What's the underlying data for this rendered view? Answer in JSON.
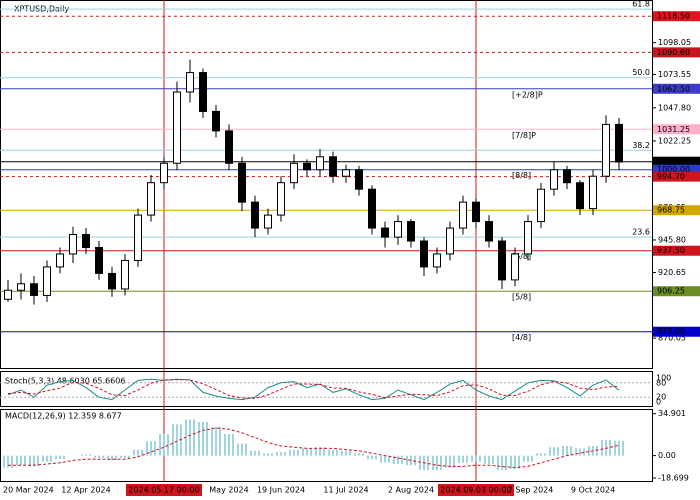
{
  "chart_data": {
    "type": "candlestick",
    "title": "XPTUSD,Daily",
    "categories": [
      "20 Mar 2024",
      null,
      null,
      null,
      null,
      null,
      "12 Apr 2024",
      null,
      null,
      null,
      null,
      null,
      "2024.05.17 00:00",
      null,
      null,
      null,
      null,
      "May 2024",
      null,
      null,
      null,
      "19 Jun 2024",
      null,
      null,
      null,
      null,
      "11 Jul 2024",
      null,
      null,
      null,
      null,
      "2 Aug 2024",
      null,
      null,
      null,
      null,
      "2024.09.03 00:00",
      null,
      null,
      null,
      "17 Sep 2024",
      null,
      null,
      null,
      null,
      "9 Oct 2024",
      null,
      null
    ],
    "vline_dates": [
      "2024.05.17 00:00",
      "2024.09.03 00:00"
    ],
    "open": [
      900,
      907,
      912,
      903,
      925,
      935,
      950,
      940,
      920,
      908,
      930,
      965,
      990,
      1005,
      1060,
      1075,
      1045,
      1030,
      1005,
      975,
      955,
      965,
      990,
      1005,
      1000,
      1010,
      995,
      1000,
      985,
      955,
      948,
      960,
      945,
      925,
      935,
      955,
      975,
      960,
      945,
      915,
      935,
      960,
      985,
      1000,
      990,
      970,
      995,
      1035
    ],
    "high": [
      915,
      920,
      918,
      930,
      940,
      956,
      955,
      945,
      925,
      935,
      970,
      996,
      1010,
      1068,
      1085,
      1078,
      1050,
      1035,
      1010,
      980,
      970,
      995,
      1012,
      1008,
      1016,
      1014,
      1004,
      1003,
      988,
      960,
      965,
      962,
      948,
      940,
      960,
      980,
      978,
      965,
      948,
      940,
      965,
      990,
      1006,
      1003,
      992,
      1000,
      1042,
      1040
    ],
    "low": [
      898,
      900,
      896,
      898,
      920,
      928,
      935,
      915,
      902,
      903,
      925,
      960,
      985,
      1000,
      1052,
      1040,
      1025,
      1000,
      968,
      948,
      950,
      960,
      985,
      995,
      995,
      990,
      990,
      980,
      950,
      940,
      942,
      940,
      918,
      920,
      930,
      950,
      955,
      940,
      908,
      910,
      930,
      955,
      980,
      985,
      965,
      965,
      990,
      1000
    ],
    "close": [
      907,
      912,
      903,
      925,
      935,
      950,
      940,
      920,
      908,
      930,
      965,
      990,
      1005,
      1060,
      1075,
      1045,
      1030,
      1005,
      975,
      955,
      965,
      990,
      1005,
      1000,
      1010,
      995,
      1000,
      985,
      955,
      948,
      960,
      945,
      925,
      935,
      955,
      975,
      960,
      945,
      915,
      935,
      960,
      985,
      1000,
      990,
      970,
      995,
      1035,
      1006
    ],
    "ylim": [
      847,
      1131
    ],
    "yticks": [
      {
        "value": 1098.05,
        "label": "1098.05"
      },
      1073.55,
      {
        "value": 1047.8,
        "label": "1047.80"
      },
      1022.25,
      970.95,
      {
        "value": 945.8,
        "label": "945.80"
      },
      {
        "value": 920.65,
        "label": "920.65"
      },
      {
        "value": 870.05,
        "label": "870.05"
      }
    ],
    "levels": [
      {
        "value": 1118.5,
        "label": "1118.50",
        "color": "#e0141e",
        "dash": true
      },
      {
        "value": 1090.6,
        "label": "1090.60",
        "color": "#c8141e",
        "dash": true
      },
      {
        "value": 1062.5,
        "label": "1062.50",
        "color": "#3c3cc8",
        "dash": false,
        "murray": "[+2/8]P"
      },
      {
        "value": 1031.25,
        "label": "1031.25",
        "color": "#ffb0c8",
        "dash": false,
        "murray": "[7/8]P"
      },
      {
        "value": 1006.21,
        "label": "1006.21",
        "color": "#000000",
        "dash": false
      },
      {
        "value": 1000,
        "label": "1000.00",
        "color": "#2a3cc8",
        "dash": false,
        "murray": "[8/8]"
      },
      {
        "value": 994.7,
        "label": "994.70",
        "color": "#d0141e",
        "dash": true
      },
      {
        "value": 968.75,
        "label": "968.75",
        "color": "#d4a600",
        "dash": false
      },
      {
        "value": 937.5,
        "label": "937.50",
        "color": "#d0141e",
        "dash": false,
        "murray": "[6/8]"
      },
      {
        "value": 906.25,
        "label": "906.25",
        "color": "#6b8e23",
        "dash": false,
        "murray": "[5/8]"
      },
      {
        "value": 875,
        "label": "875.00",
        "color": "#0000c8",
        "dash": false,
        "murray": "[4/8]"
      }
    ],
    "fib": [
      {
        "value": 1124,
        "label": "61.8"
      },
      {
        "value": 1071,
        "label": "50.0"
      },
      {
        "value": 1015,
        "label": "38.2"
      },
      {
        "value": 948,
        "label": "23.6"
      }
    ],
    "stoch": {
      "title": "Stoch(5,3,3) 48.6030 65.6606",
      "ylim": [
        0,
        100
      ],
      "yticks": [
        100,
        80,
        20,
        0
      ],
      "main": [
        30,
        50,
        20,
        70,
        85,
        90,
        60,
        20,
        10,
        50,
        90,
        95,
        90,
        95,
        92,
        40,
        25,
        15,
        10,
        20,
        60,
        80,
        85,
        60,
        75,
        40,
        55,
        30,
        10,
        15,
        50,
        30,
        10,
        40,
        75,
        90,
        50,
        25,
        10,
        45,
        80,
        90,
        88,
        60,
        25,
        70,
        92,
        48.603
      ],
      "signal": [
        35,
        40,
        33,
        47,
        58,
        82,
        78,
        57,
        30,
        27,
        50,
        78,
        92,
        93,
        92,
        76,
        52,
        27,
        17,
        15,
        30,
        53,
        75,
        75,
        73,
        58,
        57,
        42,
        32,
        18,
        25,
        32,
        30,
        27,
        42,
        68,
        72,
        55,
        28,
        27,
        45,
        72,
        86,
        79,
        58,
        52,
        62,
        65.6606
      ]
    },
    "macd": {
      "title": "MACD(12,26,9) 12.359 8.677",
      "ylim": [
        -22,
        38
      ],
      "yticks": [
        34.901,
        {
          "value": 0,
          "label": "0.00"
        },
        -18.699
      ],
      "hist": [
        -10,
        -8,
        -9,
        -5,
        -3,
        0,
        1,
        -2,
        -4,
        -2,
        5,
        12,
        18,
        26,
        30,
        28,
        24,
        18,
        10,
        4,
        2,
        3,
        5,
        6,
        7,
        5,
        4,
        2,
        -3,
        -6,
        -7,
        -8,
        -12,
        -12,
        -10,
        -6,
        -5,
        -7,
        -12,
        -11,
        -5,
        2,
        7,
        8,
        6,
        8,
        13,
        12.359
      ],
      "signal": [
        -8,
        -8,
        -8,
        -7,
        -6,
        -4,
        -3,
        -3,
        -3,
        -3,
        -1,
        3,
        7,
        12,
        17,
        21,
        23,
        22,
        19,
        15,
        11,
        8,
        7,
        6,
        6,
        6,
        5,
        4,
        2,
        0,
        -2,
        -4,
        -6,
        -8,
        -9,
        -9,
        -8,
        -8,
        -9,
        -10,
        -9,
        -6,
        -3,
        0,
        2,
        4,
        6,
        8.677
      ]
    }
  }
}
